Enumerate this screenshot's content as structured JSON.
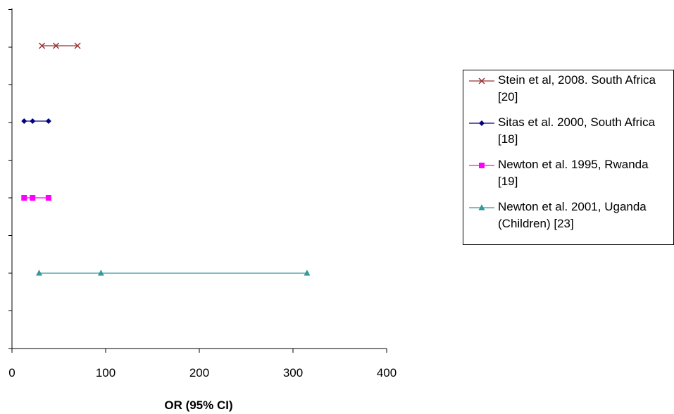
{
  "chart_data": {
    "type": "scatter",
    "title": "",
    "xlabel": "OR (95% CI)",
    "ylabel": "",
    "xlim": [
      0,
      400
    ],
    "xticks": [
      0,
      100,
      200,
      300,
      400
    ],
    "grid": false,
    "legend_position": "right",
    "series": [
      {
        "name": "Stein et al, 2008. South Africa [20]",
        "color": "#993333",
        "marker": "x",
        "points": [
          32,
          47,
          70
        ]
      },
      {
        "name": "Sitas et al. 2000, South Africa [18]",
        "color": "#000080",
        "marker": "diamond",
        "points": [
          13,
          22,
          39
        ]
      },
      {
        "name": "Newton et al. 1995, Rwanda [19]",
        "color": "#ff00ff",
        "marker": "square",
        "points": [
          13,
          22,
          39
        ]
      },
      {
        "name": "Newton et al. 2001, Uganda (Children) [23]",
        "color": "#339999",
        "marker": "triangle",
        "points": [
          29,
          95,
          315
        ]
      }
    ]
  }
}
